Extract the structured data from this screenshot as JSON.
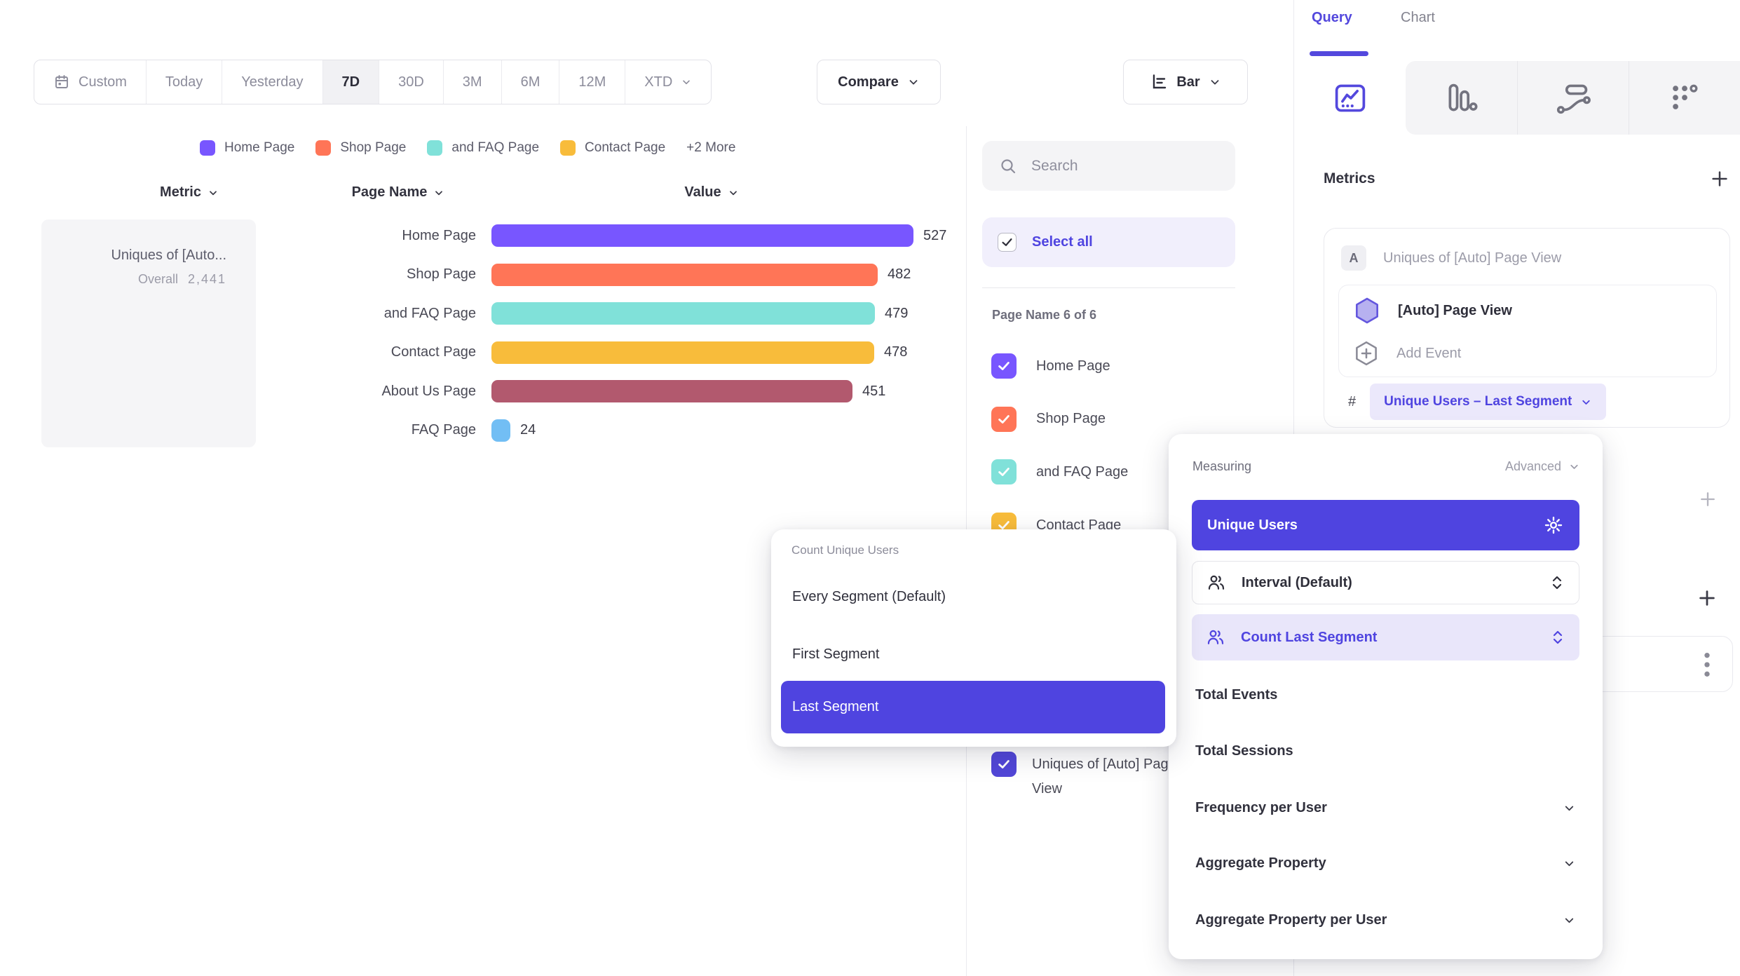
{
  "toolbar": {
    "ranges": [
      "Custom",
      "Today",
      "Yesterday",
      "7D",
      "30D",
      "3M",
      "6M",
      "12M",
      "XTD"
    ],
    "selected_range": "7D",
    "compare_label": "Compare",
    "chart_type_label": "Bar"
  },
  "legend": {
    "items": [
      {
        "label": "Home Page",
        "color": "#7856FF"
      },
      {
        "label": "Shop Page",
        "color": "#FF7557"
      },
      {
        "label": "and FAQ Page",
        "color": "#80E1D9"
      },
      {
        "label": "Contact Page",
        "color": "#F8BC3B"
      }
    ],
    "more_label": "+2 More"
  },
  "table": {
    "metric_header": "Metric",
    "page_header": "Page Name",
    "value_header": "Value",
    "metric_card": {
      "title": "Uniques of [Auto...",
      "overall_label": "Overall",
      "overall_value": "2,441"
    }
  },
  "chart_data": {
    "type": "bar",
    "orientation": "horizontal",
    "title": "Uniques of [Auto...",
    "categories": [
      "Home Page",
      "Shop Page",
      "and FAQ Page",
      "Contact Page",
      "About Us Page",
      "FAQ Page"
    ],
    "values": [
      527,
      482,
      479,
      478,
      451,
      24
    ],
    "colors": [
      "#7856FF",
      "#FF7557",
      "#80E1D9",
      "#F8BC3B",
      "#B2596E",
      "#72BEF4"
    ],
    "overall": 2441,
    "xlabel": "Value",
    "ylabel": "Page Name",
    "legend_position": "top"
  },
  "filter_panel": {
    "search_placeholder": "Search",
    "select_all_label": "Select all",
    "group_label": "Page Name 6 of 6",
    "items": [
      {
        "label": "Home Page",
        "color": "#7856FF"
      },
      {
        "label": "Shop Page",
        "color": "#FF7557"
      },
      {
        "label": "and FAQ Page",
        "color": "#80E1D9"
      },
      {
        "label": "Contact Page",
        "color": "#F8BC3B"
      }
    ],
    "metric_item": {
      "label": "Uniques of [Auto] Page View",
      "color": "#5247D8"
    }
  },
  "segment_menu": {
    "title": "Count Unique Users",
    "items": [
      "Every Segment (Default)",
      "First Segment",
      "Last Segment"
    ],
    "selected": "Last Segment"
  },
  "sidebar": {
    "tabs": {
      "query": "Query",
      "chart": "Chart"
    },
    "active_tab": "Query",
    "report_tabs": [
      "insights",
      "funnels",
      "flows",
      "retention"
    ],
    "metrics_title": "Metrics",
    "metric_letter": "A",
    "metric_title": "Uniques of [Auto] Page View",
    "event_name": "[Auto] Page View",
    "add_event_label": "Add Event",
    "hash_symbol": "#",
    "measurement_pill": "Unique Users – Last Segment"
  },
  "measuring_menu": {
    "title": "Measuring",
    "advanced_label": "Advanced",
    "selected_label": "Unique Users",
    "interval_label": "Interval (Default)",
    "count_segment_label": "Count Last Segment",
    "items": [
      {
        "label": "Total Events",
        "chevron": false
      },
      {
        "label": "Total Sessions",
        "chevron": false
      },
      {
        "label": "Frequency per User",
        "chevron": true
      },
      {
        "label": "Aggregate Property",
        "chevron": true
      },
      {
        "label": "Aggregate Property per User",
        "chevron": true
      }
    ]
  },
  "colors": {
    "accent_indigo": "#4F44E0",
    "accent_purple": "#5348DD",
    "light_indigo_bg": "#EBE8FB",
    "selected_row_bg": "#E9E6FA",
    "panel_gray": "#F4F4F6",
    "border_gray": "#E2E2E8",
    "text_dark": "#2E2E3A",
    "text_gray": "#8C8C9B"
  }
}
